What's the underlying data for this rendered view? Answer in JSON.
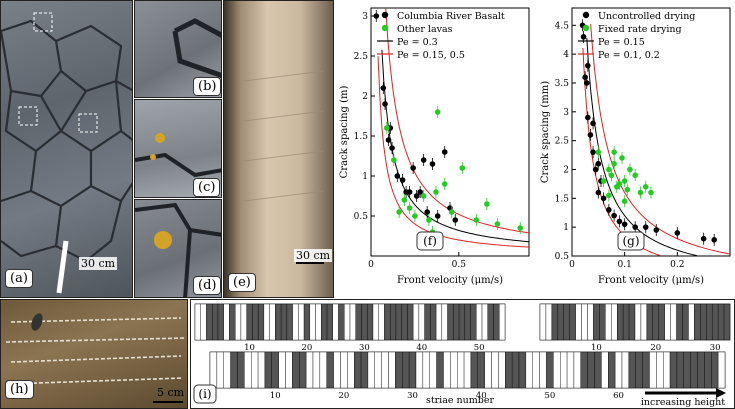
{
  "panels": {
    "a": {
      "label": "(a)",
      "scale": "30 cm"
    },
    "b": {
      "label": "(b)"
    },
    "c": {
      "label": "(c)"
    },
    "d": {
      "label": "(d)"
    },
    "e": {
      "label": "(e)",
      "scale": "30 cm"
    },
    "f": {
      "label": "(f)"
    },
    "g": {
      "label": "(g)"
    },
    "h": {
      "label": "(h)",
      "scale": "5 cm"
    },
    "i": {
      "label": "(i)",
      "xlabel": "striae number",
      "arrow_label": "increasing height"
    }
  },
  "colors": {
    "black": "#000000",
    "green": "#22cc22",
    "red": "#dd2222",
    "stripe": "#555555"
  },
  "chart_data": [
    {
      "type": "scatter",
      "panel": "f",
      "xlabel": "Front velocity (μm/s)",
      "ylabel": "Crack spacing (m)",
      "xlim": [
        0,
        0.9
      ],
      "ylim": [
        0,
        3.1
      ],
      "xticks": [
        0,
        0.5
      ],
      "yticks": [
        0.5,
        1,
        1.5,
        2,
        2.5,
        3
      ],
      "legend": [
        "Columbia River Basalt",
        "Other lavas",
        "Pe = 0.3",
        "Pe = 0.15,  0.5"
      ],
      "series": [
        {
          "name": "Columbia River Basalt",
          "color": "black",
          "x": [
            0.03,
            0.07,
            0.08,
            0.1,
            0.11,
            0.12,
            0.15,
            0.18,
            0.2,
            0.22,
            0.24,
            0.26,
            0.28,
            0.3,
            0.32,
            0.35,
            0.38,
            0.42,
            0.45,
            0.48
          ],
          "y": [
            3.0,
            2.1,
            1.9,
            1.45,
            1.6,
            1.35,
            1.0,
            0.95,
            0.8,
            0.8,
            1.1,
            0.75,
            0.8,
            1.2,
            0.55,
            1.15,
            0.5,
            1.3,
            0.6,
            0.45
          ]
        },
        {
          "name": "Other lavas",
          "color": "green",
          "x": [
            0.09,
            0.13,
            0.16,
            0.19,
            0.22,
            0.25,
            0.3,
            0.33,
            0.35,
            0.37,
            0.38,
            0.42,
            0.46,
            0.52,
            0.6,
            0.66,
            0.72,
            0.85
          ],
          "y": [
            1.6,
            1.2,
            0.55,
            0.7,
            0.6,
            0.5,
            0.75,
            0.45,
            0.3,
            0.8,
            1.8,
            0.9,
            0.55,
            1.1,
            0.45,
            0.65,
            0.4,
            0.35
          ]
        }
      ],
      "curves": [
        {
          "name": "Pe = 0.3",
          "color": "black",
          "k": 0.16
        },
        {
          "name": "Pe = 0.15,  0.5",
          "color": "red",
          "k": [
            0.1,
            0.26
          ]
        }
      ]
    },
    {
      "type": "scatter",
      "panel": "g",
      "xlabel": "Front velocity (μm/s)",
      "ylabel": "Crack spacing (mm)",
      "xlim": [
        0,
        0.3
      ],
      "ylim": [
        0.5,
        4.8
      ],
      "xticks": [
        0,
        0.1,
        0.2
      ],
      "yticks": [
        0.5,
        1,
        1.5,
        2,
        2.5,
        3,
        3.5,
        4,
        4.5
      ],
      "legend": [
        "Uncontrolled drying",
        "Fixed rate drying",
        "Pe = 0.15",
        "Pe = 0.1,  0.2"
      ],
      "series": [
        {
          "name": "Uncontrolled drying",
          "color": "black",
          "x": [
            0.02,
            0.022,
            0.025,
            0.028,
            0.03,
            0.035,
            0.04,
            0.045,
            0.05,
            0.055,
            0.06,
            0.07,
            0.08,
            0.09,
            0.1,
            0.12,
            0.14,
            0.16,
            0.2,
            0.25,
            0.27,
            0.03,
            0.04,
            0.05
          ],
          "y": [
            4.5,
            4.3,
            3.6,
            3.5,
            2.9,
            2.6,
            2.3,
            2.0,
            2.1,
            1.8,
            1.5,
            1.3,
            1.2,
            1.1,
            1.05,
            1.0,
            1.0,
            0.95,
            0.9,
            0.8,
            0.78,
            3.8,
            2.8,
            1.6
          ]
        },
        {
          "name": "Fixed rate drying",
          "color": "green",
          "x": [
            0.05,
            0.06,
            0.07,
            0.075,
            0.08,
            0.085,
            0.09,
            0.095,
            0.1,
            0.105,
            0.11,
            0.12,
            0.13,
            0.14,
            0.15,
            0.07,
            0.08,
            0.1
          ],
          "y": [
            2.3,
            1.8,
            2.0,
            1.9,
            2.1,
            1.7,
            1.75,
            2.2,
            1.8,
            1.65,
            2.0,
            1.9,
            1.6,
            1.7,
            1.6,
            1.55,
            2.3,
            1.45
          ]
        }
      ],
      "curves": [
        {
          "name": "Pe = 0.15",
          "color": "black",
          "k": 0.12
        },
        {
          "name": "Pe = 0.1,  0.2",
          "color": "red",
          "k": [
            0.085,
            0.16
          ]
        }
      ]
    },
    {
      "type": "barcode",
      "panel": "i",
      "strips": [
        {
          "ticks": [
            10,
            20,
            30,
            40,
            50
          ],
          "count": 54,
          "dark": [
            2,
            3,
            4,
            6,
            9,
            10,
            11,
            14,
            15,
            16,
            19,
            22,
            23,
            25,
            28,
            29,
            30,
            33,
            34,
            35,
            36,
            37,
            40,
            41,
            44,
            45,
            46,
            47,
            48,
            51,
            52
          ]
        },
        {
          "ticks": [
            10,
            20,
            30
          ],
          "count": 32,
          "dark": [
            2,
            3,
            4,
            5,
            9,
            10,
            13,
            14,
            15,
            18,
            19,
            20,
            23,
            24,
            26,
            27,
            28,
            29,
            30,
            31
          ]
        },
        {
          "ticks": [
            10,
            20,
            30,
            40,
            50,
            60
          ],
          "count": 75,
          "dark": [
            3,
            4,
            8,
            9,
            12,
            13,
            17,
            21,
            22,
            27,
            28,
            29,
            33,
            38,
            39,
            43,
            44,
            45,
            49,
            54,
            55,
            56,
            58,
            61,
            62,
            63,
            67,
            68,
            69,
            70,
            71,
            72,
            73
          ]
        }
      ]
    }
  ]
}
